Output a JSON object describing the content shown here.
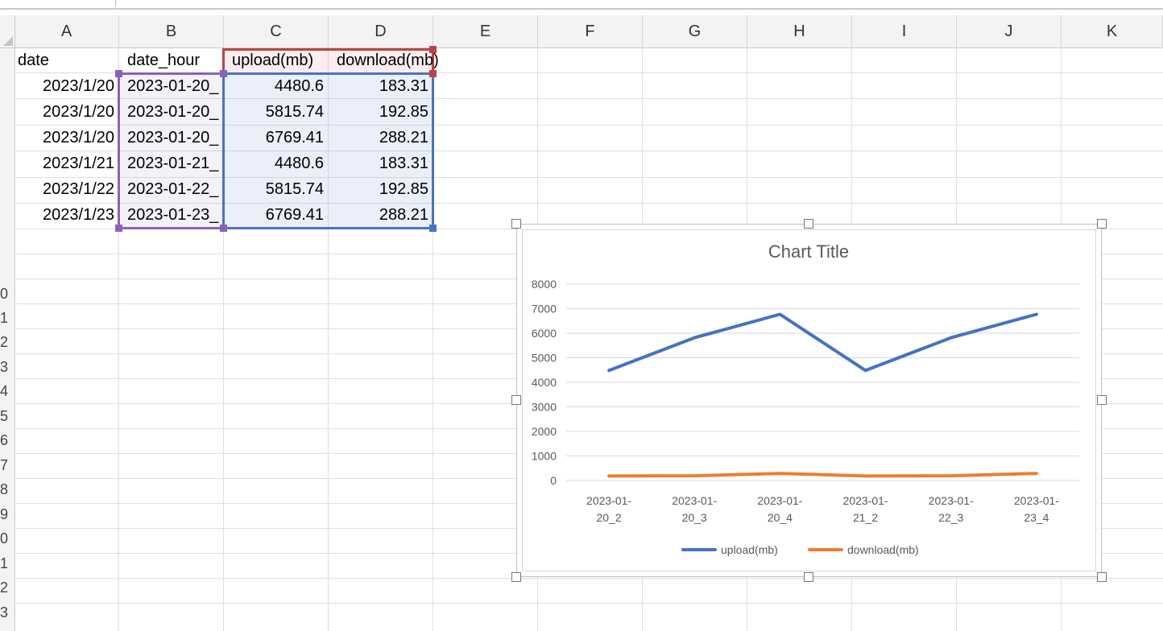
{
  "columns": [
    "A",
    "B",
    "C",
    "D",
    "E",
    "F",
    "G",
    "H",
    "I",
    "J",
    "K"
  ],
  "row_numbers_visible": [
    "0",
    "1",
    "2",
    "3",
    "4",
    "5",
    "6",
    "7",
    "8",
    "9",
    "0",
    "1",
    "2",
    "3"
  ],
  "table": {
    "headers": [
      "date",
      "date_hour",
      "upload(mb)",
      "download(mb)"
    ],
    "rows": [
      [
        "2023/1/20",
        "2023-01-20_",
        "4480.6",
        "183.31"
      ],
      [
        "2023/1/20",
        "2023-01-20_",
        "5815.74",
        "192.85"
      ],
      [
        "2023/1/20",
        "2023-01-20_",
        "6769.41",
        "288.21"
      ],
      [
        "2023/1/21",
        "2023-01-21_",
        "4480.6",
        "183.31"
      ],
      [
        "2023/1/22",
        "2023-01-22_",
        "5815.74",
        "192.85"
      ],
      [
        "2023/1/23",
        "2023-01-23_",
        "6769.41",
        "288.21"
      ]
    ]
  },
  "chart_data": {
    "type": "line",
    "title": "Chart Title",
    "categories": [
      "2023-01-20_2",
      "2023-01-20_3",
      "2023-01-20_4",
      "2023-01-21_2",
      "2023-01-22_3",
      "2023-01-23_4"
    ],
    "category_lines": [
      [
        "2023-01-",
        "20_2"
      ],
      [
        "2023-01-",
        "20_3"
      ],
      [
        "2023-01-",
        "20_4"
      ],
      [
        "2023-01-",
        "21_2"
      ],
      [
        "2023-01-",
        "22_3"
      ],
      [
        "2023-01-",
        "23_4"
      ]
    ],
    "series": [
      {
        "name": "upload(mb)",
        "color": "#4472C4",
        "values": [
          4480.6,
          5815.74,
          6769.41,
          4480.6,
          5815.74,
          6769.41
        ]
      },
      {
        "name": "download(mb)",
        "color": "#ED7D31",
        "values": [
          183.31,
          192.85,
          288.21,
          183.31,
          192.85,
          288.21
        ]
      }
    ],
    "yticks": [
      "0",
      "1000",
      "2000",
      "3000",
      "4000",
      "5000",
      "6000",
      "7000",
      "8000"
    ],
    "ylim": [
      0,
      8000
    ],
    "grid": true,
    "legend": "bottom"
  }
}
